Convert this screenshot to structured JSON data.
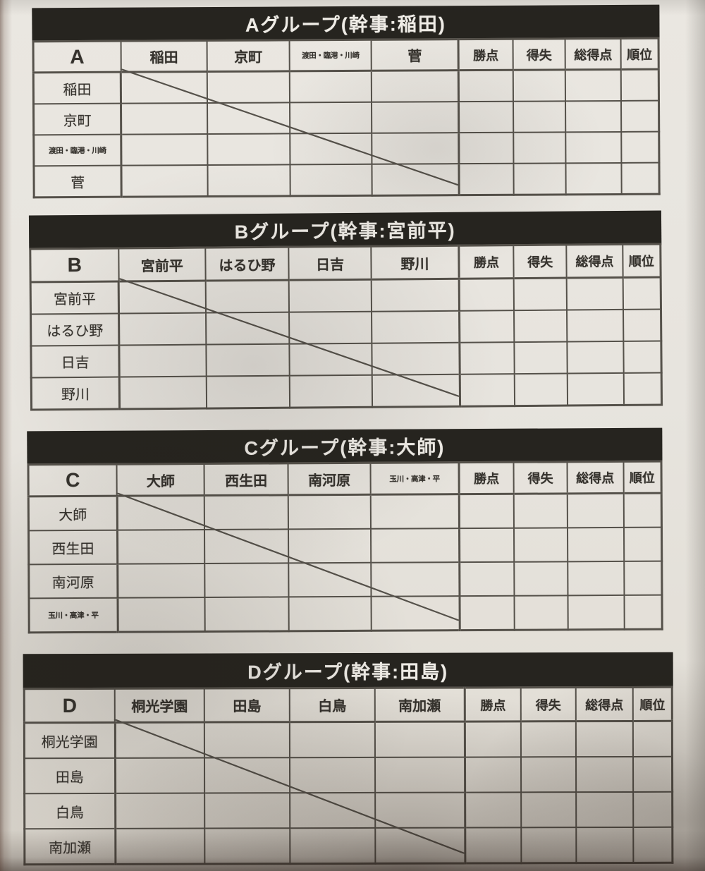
{
  "colors": {
    "paper": "#e8e5df",
    "bar": "#26241f",
    "line": "#55514a",
    "ink": "#35322d",
    "title_text": "#efece6"
  },
  "stat_columns": [
    "勝点",
    "得失",
    "総得点",
    "順位"
  ],
  "groups": [
    {
      "letter": "A",
      "title": "Aグループ(幹事:稲田)",
      "manager": "稲田",
      "teams": [
        "稲田",
        "京町",
        "渡田・臨港・川崎",
        "菅"
      ],
      "small_teams": [
        2
      ]
    },
    {
      "letter": "B",
      "title": "Bグループ(幹事:宮前平)",
      "manager": "宮前平",
      "teams": [
        "宮前平",
        "はるひ野",
        "日吉",
        "野川"
      ],
      "small_teams": []
    },
    {
      "letter": "C",
      "title": "Cグループ(幹事:大師)",
      "manager": "大師",
      "teams": [
        "大師",
        "西生田",
        "南河原",
        "玉川・高津・平"
      ],
      "small_teams": [
        3
      ]
    },
    {
      "letter": "D",
      "title": "Dグループ(幹事:田島)",
      "manager": "田島",
      "teams": [
        "桐光学園",
        "田島",
        "白鳥",
        "南加瀬"
      ],
      "small_teams": []
    }
  ]
}
